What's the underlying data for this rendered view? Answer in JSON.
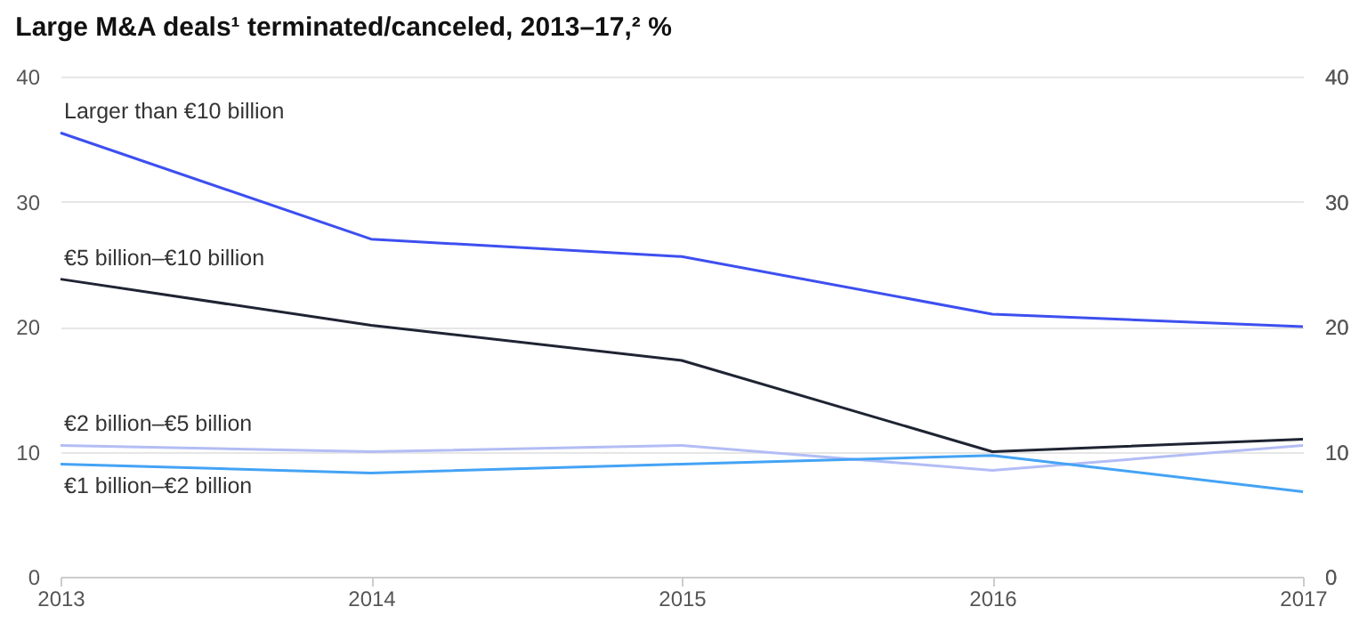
{
  "chart_data": {
    "type": "line",
    "title": "Large M&A deals¹ terminated/canceled, 2013–17,² %",
    "x": [
      2013,
      2014,
      2015,
      2016,
      2017
    ],
    "xlim": [
      2013,
      2017
    ],
    "xticks": [
      2013,
      2014,
      2015,
      2016,
      2017
    ],
    "ylim": [
      0,
      40
    ],
    "yticks": [
      0,
      10,
      20,
      30,
      40
    ],
    "y2lim": [
      0,
      40
    ],
    "y2ticks": [
      0,
      10,
      20,
      30,
      40
    ],
    "grid": "y",
    "legend": false,
    "marker": "none",
    "line_style": "solid",
    "series": [
      {
        "name": "Larger than €10 billion",
        "color": "#3d4ff0",
        "values": [
          35.5,
          27.0,
          25.6,
          21.0,
          20.0
        ]
      },
      {
        "name": "€5 billion–€10 billion",
        "color": "#1f2433",
        "values": [
          23.8,
          20.1,
          17.3,
          10.0,
          11.0
        ]
      },
      {
        "name": "€2 billion–€5 billion",
        "color": "#b3bdf5",
        "values": [
          10.5,
          10.0,
          10.5,
          8.5,
          10.5
        ]
      },
      {
        "name": "€1 billion–€2 billion",
        "color": "#44a3f5",
        "values": [
          9.0,
          8.3,
          9.0,
          9.7,
          6.8
        ]
      }
    ]
  }
}
